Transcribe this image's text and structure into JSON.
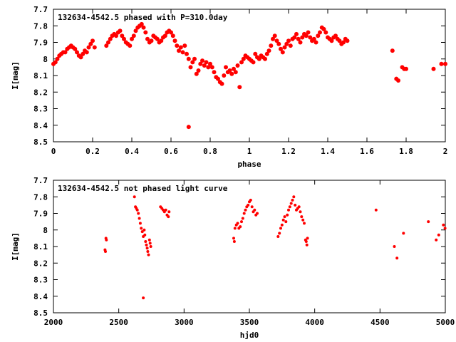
{
  "chart_data": [
    {
      "type": "scatter",
      "title": "132634-4542.5 phased with P=310.0day",
      "xlabel": "phase",
      "ylabel": "I[mag]",
      "xlim": [
        0,
        2
      ],
      "ylim": [
        7.7,
        8.5
      ],
      "y_inverted": true,
      "x_ticks": [
        {
          "value": 0,
          "label": "0"
        },
        {
          "value": 0.2,
          "label": "0.2"
        },
        {
          "value": 0.4,
          "label": "0.4"
        },
        {
          "value": 0.6,
          "label": "0.6"
        },
        {
          "value": 0.8,
          "label": "0.8"
        },
        {
          "value": 1,
          "label": "1"
        },
        {
          "value": 1.2,
          "label": "1.2"
        },
        {
          "value": 1.4,
          "label": "1.4"
        },
        {
          "value": 1.6,
          "label": "1.6"
        },
        {
          "value": 1.8,
          "label": "1.8"
        },
        {
          "value": 2,
          "label": "2"
        }
      ],
      "y_ticks": [
        {
          "value": 7.7,
          "label": "7.7"
        },
        {
          "value": 7.8,
          "label": "7.8"
        },
        {
          "value": 7.9,
          "label": "7.9"
        },
        {
          "value": 8.0,
          "label": "8"
        },
        {
          "value": 8.1,
          "label": "8.1"
        },
        {
          "value": 8.2,
          "label": "8.2"
        },
        {
          "value": 8.3,
          "label": "8.3"
        },
        {
          "value": 8.4,
          "label": "8.4"
        },
        {
          "value": 8.5,
          "label": "8.5"
        }
      ],
      "grid": false,
      "marker_color": "#ff0000",
      "points": [
        [
          0.0,
          8.03
        ],
        [
          0.01,
          8.02
        ],
        [
          0.02,
          8.0
        ],
        [
          0.03,
          7.98
        ],
        [
          0.04,
          7.97
        ],
        [
          0.05,
          7.96
        ],
        [
          0.06,
          7.96
        ],
        [
          0.07,
          7.94
        ],
        [
          0.08,
          7.93
        ],
        [
          0.09,
          7.92
        ],
        [
          0.1,
          7.93
        ],
        [
          0.11,
          7.94
        ],
        [
          0.12,
          7.96
        ],
        [
          0.13,
          7.98
        ],
        [
          0.14,
          7.99
        ],
        [
          0.15,
          7.97
        ],
        [
          0.16,
          7.95
        ],
        [
          0.17,
          7.96
        ],
        [
          0.18,
          7.93
        ],
        [
          0.19,
          7.91
        ],
        [
          0.2,
          7.89
        ],
        [
          0.21,
          7.93
        ],
        [
          0.27,
          7.92
        ],
        [
          0.28,
          7.9
        ],
        [
          0.29,
          7.88
        ],
        [
          0.3,
          7.86
        ],
        [
          0.31,
          7.85
        ],
        [
          0.32,
          7.86
        ],
        [
          0.33,
          7.84
        ],
        [
          0.34,
          7.83
        ],
        [
          0.35,
          7.86
        ],
        [
          0.36,
          7.88
        ],
        [
          0.37,
          7.9
        ],
        [
          0.38,
          7.91
        ],
        [
          0.39,
          7.92
        ],
        [
          0.4,
          7.88
        ],
        [
          0.41,
          7.86
        ],
        [
          0.42,
          7.83
        ],
        [
          0.43,
          7.81
        ],
        [
          0.44,
          7.8
        ],
        [
          0.45,
          7.79
        ],
        [
          0.46,
          7.81
        ],
        [
          0.47,
          7.84
        ],
        [
          0.48,
          7.88
        ],
        [
          0.49,
          7.9
        ],
        [
          0.5,
          7.89
        ],
        [
          0.51,
          7.86
        ],
        [
          0.52,
          7.87
        ],
        [
          0.53,
          7.88
        ],
        [
          0.54,
          7.9
        ],
        [
          0.55,
          7.89
        ],
        [
          0.56,
          7.87
        ],
        [
          0.57,
          7.86
        ],
        [
          0.58,
          7.84
        ],
        [
          0.59,
          7.83
        ],
        [
          0.6,
          7.84
        ],
        [
          0.61,
          7.86
        ],
        [
          0.62,
          7.89
        ],
        [
          0.63,
          7.92
        ],
        [
          0.64,
          7.95
        ],
        [
          0.65,
          7.93
        ],
        [
          0.66,
          7.96
        ],
        [
          0.67,
          7.92
        ],
        [
          0.68,
          7.97
        ],
        [
          0.69,
          8.0
        ],
        [
          0.7,
          8.05
        ],
        [
          0.71,
          8.02
        ],
        [
          0.72,
          8.0
        ],
        [
          0.73,
          8.09
        ],
        [
          0.74,
          8.07
        ],
        [
          0.75,
          8.03
        ],
        [
          0.76,
          8.01
        ],
        [
          0.77,
          8.04
        ],
        [
          0.78,
          8.02
        ],
        [
          0.79,
          8.05
        ],
        [
          0.8,
          8.03
        ],
        [
          0.81,
          8.05
        ],
        [
          0.82,
          8.08
        ],
        [
          0.83,
          8.11
        ],
        [
          0.84,
          8.12
        ],
        [
          0.85,
          8.14
        ],
        [
          0.86,
          8.15
        ],
        [
          0.87,
          8.1
        ],
        [
          0.88,
          8.05
        ],
        [
          0.89,
          8.08
        ],
        [
          0.9,
          8.07
        ],
        [
          0.91,
          8.09
        ],
        [
          0.92,
          8.06
        ],
        [
          0.93,
          8.08
        ],
        [
          0.94,
          8.04
        ],
        [
          0.95,
          8.17
        ],
        [
          0.96,
          8.02
        ],
        [
          0.97,
          8.0
        ],
        [
          0.98,
          7.98
        ],
        [
          0.99,
          7.99
        ],
        [
          1.0,
          8.0
        ],
        [
          1.01,
          8.01
        ],
        [
          1.02,
          8.02
        ],
        [
          1.03,
          7.97
        ],
        [
          1.04,
          7.99
        ],
        [
          1.05,
          8.0
        ],
        [
          1.06,
          7.98
        ],
        [
          1.07,
          7.99
        ],
        [
          1.08,
          8.0
        ],
        [
          1.09,
          7.97
        ],
        [
          1.1,
          7.95
        ],
        [
          1.11,
          7.92
        ],
        [
          1.12,
          7.88
        ],
        [
          1.13,
          7.86
        ],
        [
          1.14,
          7.89
        ],
        [
          1.15,
          7.91
        ],
        [
          1.16,
          7.94
        ],
        [
          1.17,
          7.96
        ],
        [
          1.18,
          7.93
        ],
        [
          1.19,
          7.91
        ],
        [
          1.2,
          7.89
        ],
        [
          1.21,
          7.92
        ],
        [
          1.22,
          7.88
        ],
        [
          1.23,
          7.87
        ],
        [
          1.24,
          7.85
        ],
        [
          1.25,
          7.88
        ],
        [
          1.26,
          7.9
        ],
        [
          1.27,
          7.87
        ],
        [
          1.28,
          7.85
        ],
        [
          1.29,
          7.86
        ],
        [
          1.3,
          7.84
        ],
        [
          1.31,
          7.87
        ],
        [
          1.32,
          7.89
        ],
        [
          1.33,
          7.88
        ],
        [
          1.34,
          7.9
        ],
        [
          1.35,
          7.86
        ],
        [
          1.36,
          7.84
        ],
        [
          1.37,
          7.81
        ],
        [
          1.38,
          7.82
        ],
        [
          1.39,
          7.84
        ],
        [
          1.4,
          7.87
        ],
        [
          1.41,
          7.88
        ],
        [
          1.42,
          7.89
        ],
        [
          1.43,
          7.87
        ],
        [
          1.44,
          7.86
        ],
        [
          1.45,
          7.88
        ],
        [
          1.46,
          7.89
        ],
        [
          1.47,
          7.91
        ],
        [
          1.48,
          7.9
        ],
        [
          1.49,
          7.88
        ],
        [
          1.5,
          7.89
        ],
        [
          0.69,
          8.41
        ],
        [
          1.73,
          7.95
        ],
        [
          1.75,
          8.12
        ],
        [
          1.76,
          8.13
        ],
        [
          1.78,
          8.05
        ],
        [
          1.79,
          8.06
        ],
        [
          1.8,
          8.06
        ],
        [
          1.94,
          8.06
        ],
        [
          1.98,
          8.03
        ],
        [
          2.0,
          8.03
        ]
      ]
    },
    {
      "type": "scatter",
      "title": "132634-4542.5 not phased light curve",
      "xlabel": "hjd0",
      "ylabel": "I[mag]",
      "xlim": [
        2000,
        5000
      ],
      "ylim": [
        7.7,
        8.5
      ],
      "y_inverted": true,
      "x_ticks": [
        {
          "value": 2000,
          "label": "2000"
        },
        {
          "value": 2500,
          "label": "2500"
        },
        {
          "value": 3000,
          "label": "3000"
        },
        {
          "value": 3500,
          "label": "3500"
        },
        {
          "value": 4000,
          "label": "4000"
        },
        {
          "value": 4500,
          "label": "4500"
        },
        {
          "value": 5000,
          "label": "5000"
        }
      ],
      "y_ticks": [
        {
          "value": 7.7,
          "label": "7.7"
        },
        {
          "value": 7.8,
          "label": "7.8"
        },
        {
          "value": 7.9,
          "label": "7.9"
        },
        {
          "value": 8.0,
          "label": "8"
        },
        {
          "value": 8.1,
          "label": "8.1"
        },
        {
          "value": 8.2,
          "label": "8.2"
        },
        {
          "value": 8.3,
          "label": "8.3"
        },
        {
          "value": 8.4,
          "label": "8.4"
        },
        {
          "value": 8.5,
          "label": "8.5"
        }
      ],
      "grid": false,
      "marker_color": "#ff0000",
      "points": [
        [
          2395,
          8.12
        ],
        [
          2398,
          8.13
        ],
        [
          2402,
          8.05
        ],
        [
          2405,
          8.06
        ],
        [
          2620,
          7.8
        ],
        [
          2628,
          7.86
        ],
        [
          2635,
          7.87
        ],
        [
          2642,
          7.88
        ],
        [
          2650,
          7.9
        ],
        [
          2658,
          7.93
        ],
        [
          2665,
          7.96
        ],
        [
          2672,
          7.99
        ],
        [
          2680,
          8.01
        ],
        [
          2688,
          8.04
        ],
        [
          2695,
          8.0
        ],
        [
          2700,
          8.03
        ],
        [
          2705,
          8.07
        ],
        [
          2712,
          8.09
        ],
        [
          2718,
          8.11
        ],
        [
          2722,
          8.13
        ],
        [
          2728,
          8.15
        ],
        [
          2735,
          8.06
        ],
        [
          2740,
          8.08
        ],
        [
          2745,
          8.1
        ],
        [
          2688,
          8.41
        ],
        [
          2820,
          7.86
        ],
        [
          2830,
          7.87
        ],
        [
          2840,
          7.88
        ],
        [
          2850,
          7.89
        ],
        [
          2860,
          7.88
        ],
        [
          2870,
          7.91
        ],
        [
          2880,
          7.92
        ],
        [
          2885,
          7.89
        ],
        [
          3380,
          8.05
        ],
        [
          3385,
          8.07
        ],
        [
          3390,
          7.99
        ],
        [
          3400,
          7.97
        ],
        [
          3410,
          7.96
        ],
        [
          3420,
          7.99
        ],
        [
          3430,
          7.98
        ],
        [
          3440,
          7.95
        ],
        [
          3450,
          7.93
        ],
        [
          3460,
          7.9
        ],
        [
          3470,
          7.88
        ],
        [
          3480,
          7.86
        ],
        [
          3490,
          7.85
        ],
        [
          3500,
          7.83
        ],
        [
          3510,
          7.82
        ],
        [
          3520,
          7.86
        ],
        [
          3530,
          7.89
        ],
        [
          3540,
          7.88
        ],
        [
          3550,
          7.91
        ],
        [
          3560,
          7.9
        ],
        [
          3720,
          8.04
        ],
        [
          3730,
          8.02
        ],
        [
          3740,
          7.99
        ],
        [
          3750,
          7.97
        ],
        [
          3760,
          7.94
        ],
        [
          3770,
          7.92
        ],
        [
          3780,
          7.95
        ],
        [
          3790,
          7.91
        ],
        [
          3800,
          7.88
        ],
        [
          3810,
          7.86
        ],
        [
          3820,
          7.84
        ],
        [
          3830,
          7.82
        ],
        [
          3840,
          7.8
        ],
        [
          3850,
          7.85
        ],
        [
          3860,
          7.88
        ],
        [
          3870,
          7.87
        ],
        [
          3880,
          7.86
        ],
        [
          3890,
          7.89
        ],
        [
          3900,
          7.92
        ],
        [
          3910,
          7.94
        ],
        [
          3920,
          7.96
        ],
        [
          3930,
          8.06
        ],
        [
          3935,
          8.07
        ],
        [
          3940,
          8.09
        ],
        [
          3945,
          8.05
        ],
        [
          4470,
          7.88
        ],
        [
          4610,
          8.1
        ],
        [
          4630,
          8.17
        ],
        [
          4680,
          8.02
        ],
        [
          4870,
          7.95
        ],
        [
          4930,
          8.06
        ],
        [
          4950,
          8.03
        ],
        [
          4985,
          7.97
        ],
        [
          4998,
          7.99
        ]
      ]
    }
  ]
}
